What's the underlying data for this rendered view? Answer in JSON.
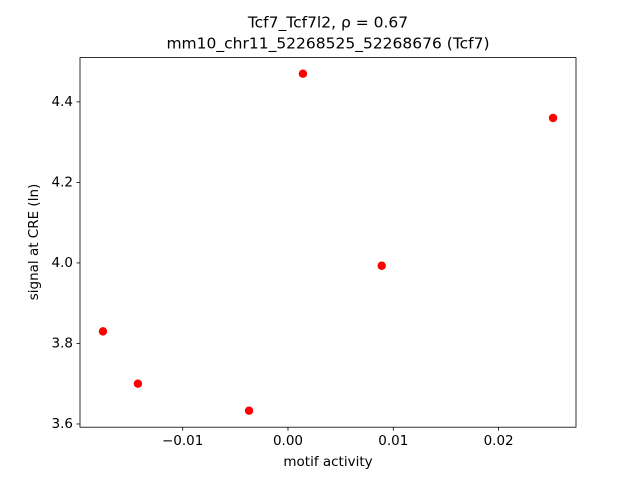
{
  "chart_data": {
    "type": "scatter",
    "title": "Tcf7_Tcf7l2, ρ = 0.67",
    "subtitle": "mm10_chr11_52268525_52268676 (Tcf7)",
    "x_label": "motif activity",
    "y_label": "signal at CRE (ln)",
    "color": "#ff0000",
    "x": [
      -0.01757,
      -0.01425,
      -0.0037,
      0.00142,
      0.0089,
      0.02517
    ],
    "values": [
      3.83,
      3.7,
      3.633,
      4.47,
      3.993,
      4.36
    ],
    "xlim": [
      -0.01975,
      0.02735
    ],
    "ylim": [
      3.592,
      4.51
    ],
    "xticks": [
      {
        "value": -0.01,
        "label": "−0.01"
      },
      {
        "value": 0,
        "label": "0.00"
      },
      {
        "value": 0.01,
        "label": "0.01"
      },
      {
        "value": 0.02,
        "label": "0.02"
      }
    ],
    "yticks": [
      3.6,
      3.8,
      {
        "value": 4.0,
        "label": "4.0"
      },
      4.2,
      4.4
    ],
    "grid": false
  }
}
